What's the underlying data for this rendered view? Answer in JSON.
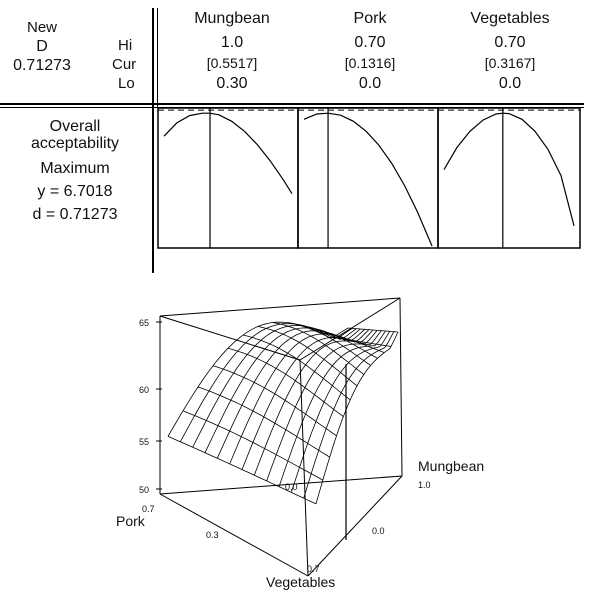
{
  "optimizer": {
    "composite": {
      "new_label": "New",
      "d_label": "D",
      "d_value": "0.71273"
    },
    "row_labels": {
      "hi": "Hi",
      "cur": "Cur",
      "lo": "Lo"
    },
    "factors": [
      {
        "name": "Mungbean",
        "hi": "1.0",
        "cur": "[0.5517]",
        "lo": "0.30"
      },
      {
        "name": "Pork",
        "hi": "0.70",
        "cur": "[0.1316]",
        "lo": "0.0"
      },
      {
        "name": "Vegetables",
        "hi": "0.70",
        "cur": "[0.3167]",
        "lo": "0.0"
      }
    ],
    "response": {
      "name_line1": "Overall",
      "name_line2": "acceptability",
      "goal": "Maximum",
      "y_text": "y = 6.7018",
      "d_text": "d = 0.71273"
    }
  },
  "chart_data": [
    {
      "type": "line",
      "title": "",
      "description_key": "response-trace-mungbean",
      "x": [
        0.3,
        0.37,
        0.44,
        0.51,
        0.5517,
        0.6,
        0.67,
        0.74,
        0.81,
        0.88,
        0.95,
        1.0
      ],
      "y": [
        6.13,
        6.46,
        6.64,
        6.7,
        6.7,
        6.66,
        6.5,
        6.25,
        5.92,
        5.52,
        5.06,
        4.7
      ],
      "xlim": [
        0.3,
        1.0
      ],
      "current_x": 0.5517,
      "reference_y": 6.7018
    },
    {
      "type": "line",
      "title": "",
      "description_key": "response-trace-pork",
      "x": [
        0.0,
        0.07,
        0.1316,
        0.2,
        0.27,
        0.34,
        0.41,
        0.48,
        0.55,
        0.62,
        0.7
      ],
      "y": [
        6.55,
        6.68,
        6.7,
        6.65,
        6.5,
        6.25,
        5.9,
        5.45,
        4.9,
        4.25,
        3.4
      ],
      "xlim": [
        0.0,
        0.7
      ],
      "current_x": 0.1316,
      "reference_y": 6.7018
    },
    {
      "type": "line",
      "title": "",
      "description_key": "response-trace-vegetables",
      "x": [
        0.0,
        0.07,
        0.14,
        0.21,
        0.28,
        0.3167,
        0.35,
        0.42,
        0.49,
        0.56,
        0.63,
        0.7
      ],
      "y": [
        5.3,
        5.85,
        6.25,
        6.53,
        6.68,
        6.7,
        6.69,
        6.55,
        6.25,
        5.8,
        5.15,
        3.9
      ],
      "xlim": [
        0.0,
        0.7
      ],
      "current_x": 0.3167,
      "reference_y": 6.7018
    },
    {
      "type": "surface",
      "zlim": [
        50,
        65
      ],
      "z_ticks": [
        "65",
        "60",
        "55",
        "50"
      ],
      "axes": {
        "mungbean": {
          "label": "Mungbean",
          "tick_top": "1.0",
          "tick_mid": "0.0"
        },
        "pork": {
          "label": "Pork",
          "tick_near": "0.7",
          "tick_mid": "0.3",
          "tick_corner": "0.7"
        },
        "vegetables": {
          "label": "Vegetables",
          "tick_inner": "0.0"
        }
      }
    }
  ]
}
